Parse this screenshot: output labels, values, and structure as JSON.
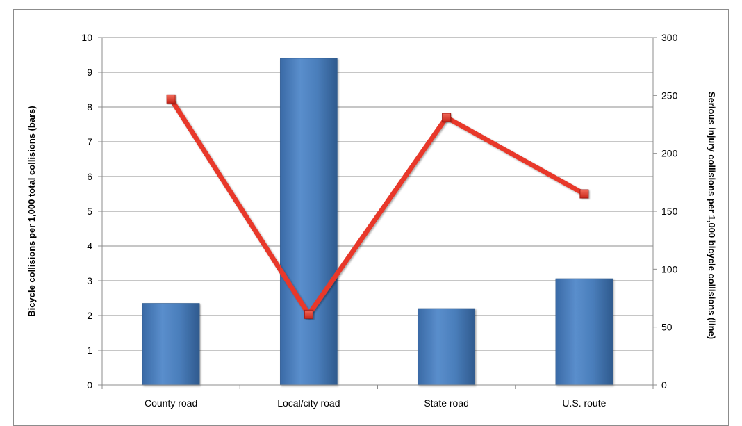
{
  "chart_data": {
    "type": "bar",
    "categories": [
      "County road",
      "Local/city road",
      "State road",
      "U.S. route"
    ],
    "series": [
      {
        "chart_type": "bar",
        "axis": "left",
        "values": [
          2.35,
          9.4,
          2.2,
          3.06
        ],
        "color": "#4a7ebb"
      },
      {
        "chart_type": "line",
        "axis": "right",
        "values": [
          247,
          61,
          231,
          165
        ],
        "color": "#e8392b",
        "marker": "square"
      }
    ],
    "title": "",
    "xlabel": "",
    "ylabel": "Bicycle collisions per 1,000 total collisions (bars)",
    "y2label": "Serious injury collisions per 1,000 bicycle collisions (line)",
    "ylim": [
      0,
      10
    ],
    "y2lim": [
      0,
      300
    ],
    "yticks": [
      "0",
      "1",
      "2",
      "3",
      "4",
      "5",
      "6",
      "7",
      "8",
      "9",
      "10"
    ],
    "y2ticks": [
      "0",
      "50",
      "100",
      "150",
      "200",
      "250",
      "300"
    ],
    "grid": true,
    "legend": "none"
  }
}
